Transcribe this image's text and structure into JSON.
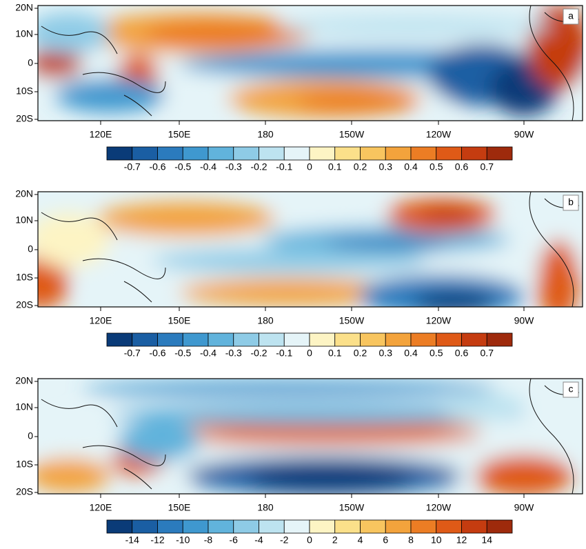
{
  "lat_labels": [
    "20N",
    "10N",
    "0",
    "10S",
    "20S"
  ],
  "lon_labels": [
    "120E",
    "150E",
    "180",
    "150W",
    "120W",
    "90W"
  ],
  "colors": [
    "#0a3b78",
    "#1a5ea3",
    "#2b7bbd",
    "#3f98cf",
    "#61b3dc",
    "#8ecbe6",
    "#bde3f0",
    "#e5f4f8",
    "#fdf4c4",
    "#fbe08a",
    "#f8c55f",
    "#f3a33c",
    "#ec7d24",
    "#df5a17",
    "#c53c10",
    "#9e2a0c"
  ],
  "panels": [
    {
      "label": "a",
      "colorbar": [
        "-0.7",
        "-0.6",
        "-0.5",
        "-0.4",
        "-0.3",
        "-0.2",
        "-0.1",
        "0",
        "0.1",
        "0.2",
        "0.3",
        "0.4",
        "0.5",
        "0.6",
        "0.7"
      ]
    },
    {
      "label": "b",
      "colorbar": [
        "-0.7",
        "-0.6",
        "-0.5",
        "-0.4",
        "-0.3",
        "-0.2",
        "-0.1",
        "0",
        "0.1",
        "0.2",
        "0.3",
        "0.4",
        "0.5",
        "0.6",
        "0.7"
      ]
    },
    {
      "label": "c",
      "colorbar": [
        "-14",
        "-12",
        "-10",
        "-8",
        "-6",
        "-4",
        "-2",
        "0",
        "2",
        "4",
        "6",
        "8",
        "10",
        "12",
        "14"
      ]
    }
  ]
}
